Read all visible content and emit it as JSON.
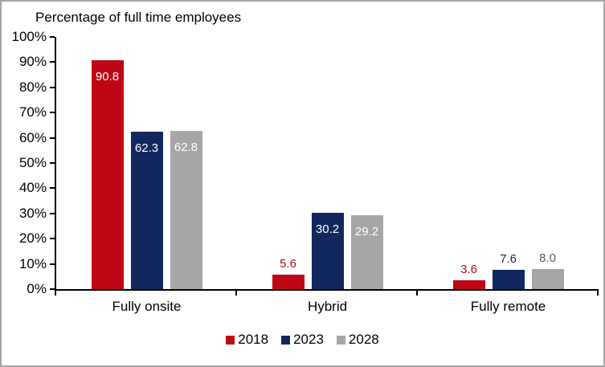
{
  "window": {
    "border_color": "#a6a6a6",
    "background_color": "#ffffff",
    "axis_color": "#000000"
  },
  "chart_data": {
    "type": "bar",
    "title": "Percentage of full time employees",
    "categories": [
      "Fully onsite",
      "Hybrid",
      "Fully remote"
    ],
    "series": [
      {
        "name": "2018",
        "color": "#c00614",
        "outside_label_color": "#c00614",
        "values": [
          90.8,
          5.6,
          3.6
        ],
        "labels": [
          "90.8",
          "5.6",
          "3.6"
        ]
      },
      {
        "name": "2023",
        "color": "#12275e",
        "outside_label_color": "#12275e",
        "values": [
          62.3,
          30.2,
          7.6
        ],
        "labels": [
          "62.3",
          "30.2",
          "7.6"
        ]
      },
      {
        "name": "2028",
        "color": "#a6a6a6",
        "outside_label_color": "#595959",
        "values": [
          62.8,
          29.2,
          8.0
        ],
        "labels": [
          "62.8",
          "29.2",
          "8.0"
        ]
      }
    ],
    "xlabel": "",
    "ylabel": "",
    "ylim": [
      0,
      100
    ],
    "y_ticks": [
      "0%",
      "10%",
      "20%",
      "30%",
      "40%",
      "50%",
      "60%",
      "70%",
      "80%",
      "90%",
      "100%"
    ],
    "grid": false,
    "inside_label_color": "#ffffff",
    "inside_label_threshold": 15,
    "legend": {
      "position": "bottom",
      "entries": [
        "2018",
        "2023",
        "2028"
      ]
    }
  }
}
